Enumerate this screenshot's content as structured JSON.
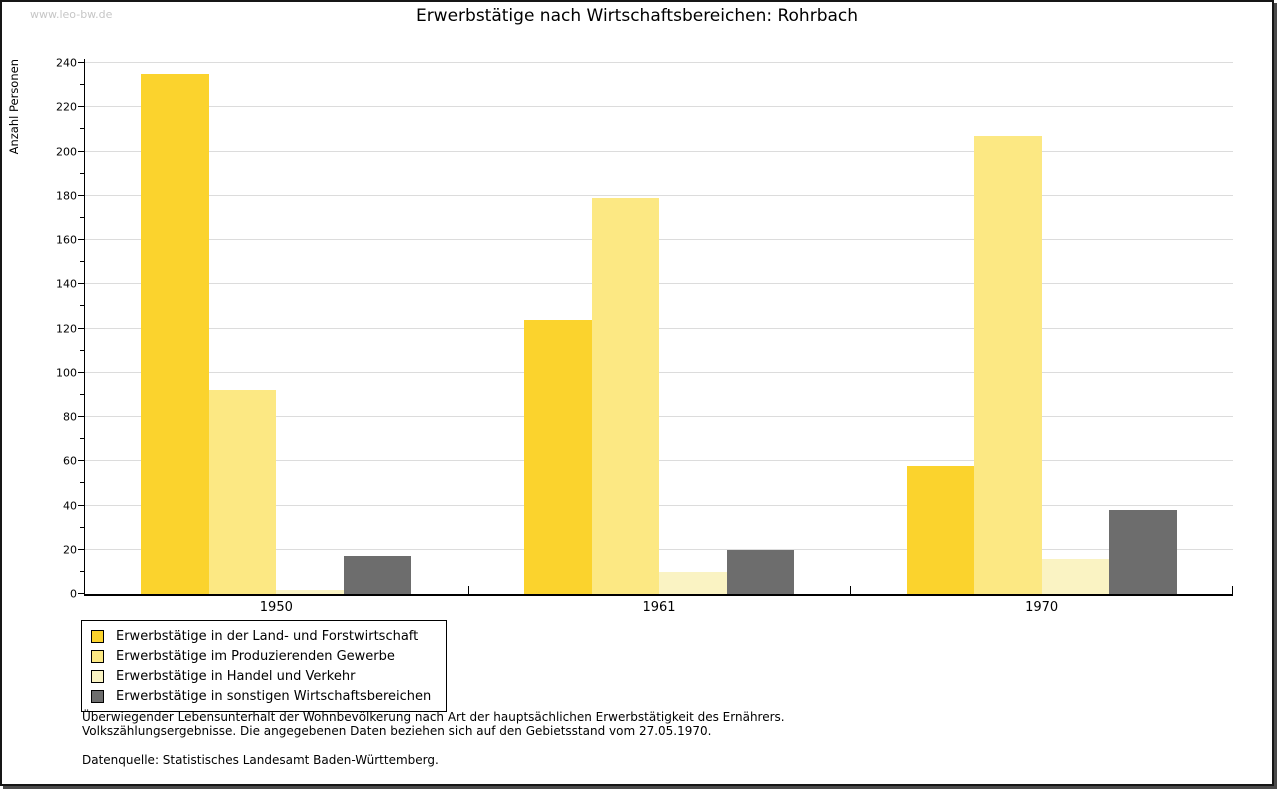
{
  "watermark": "www.leo-bw.de",
  "chart_data": {
    "type": "bar",
    "title": "Erwerbstätige nach Wirtschaftsbereichen: Rohrbach",
    "ylabel": "Anzahl Personen",
    "xlabel": "",
    "categories": [
      "1950",
      "1961",
      "1970"
    ],
    "series": [
      {
        "name": "Erwerbstätige in der Land- und Forstwirtschaft",
        "color": "#FBD32D",
        "values": [
          235,
          124,
          58
        ]
      },
      {
        "name": "Erwerbstätige im Produzierenden Gewerbe",
        "color": "#FCE883",
        "values": [
          92,
          179,
          207
        ]
      },
      {
        "name": "Erwerbstätige in Handel und Verkehr",
        "color": "#FAF3C3",
        "values": [
          2,
          10,
          16
        ]
      },
      {
        "name": "Erwerbstätige in sonstigen Wirtschaftsbereichen",
        "color": "#6D6D6D",
        "values": [
          17,
          20,
          38
        ]
      }
    ],
    "ylim": [
      0,
      240
    ],
    "ytick_step": 20,
    "yminor_step": 10,
    "grid": "horizontal",
    "gridline_color": "#DCDCDC",
    "legend_position": "bottom-left"
  },
  "footer": {
    "line1": "Überwiegender Lebensunterhalt der Wohnbevölkerung nach Art der hauptsächlichen Erwerbstätigkeit des Ernährers.",
    "line2": "Volkszählungsergebnisse. Die angegebenen Daten beziehen sich auf den Gebietsstand vom 27.05.1970.",
    "line3": "Datenquelle: Statistisches Landesamt Baden-Württemberg."
  }
}
